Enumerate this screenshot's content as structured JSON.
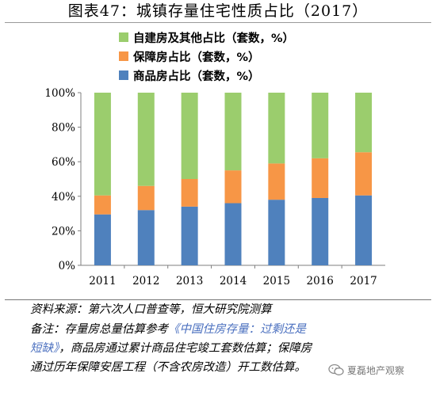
{
  "figure": {
    "title": "图表47：城镇存量住宅性质占比（2017）"
  },
  "chart_data": {
    "type": "bar",
    "stacked": true,
    "categories": [
      "2011",
      "2012",
      "2013",
      "2014",
      "2015",
      "2016",
      "2017"
    ],
    "series": [
      {
        "name": "商品房占比（套数，%）",
        "color": "#4f81bd",
        "values": [
          29.5,
          32,
          34,
          36,
          38,
          39,
          40.5
        ]
      },
      {
        "name": "保障房占比（套数，%）",
        "color": "#f79646",
        "values": [
          11,
          14,
          16,
          19,
          21,
          23,
          25
        ]
      },
      {
        "name": "自建房及其他占比（套数，%）",
        "color": "#9bcd6d",
        "values": [
          59.5,
          54,
          50,
          45,
          41,
          38,
          34.5
        ]
      }
    ],
    "legend_order": [
      "自建房及其他占比（套数，%）",
      "保障房占比（套数，%）",
      "商品房占比（套数，%）"
    ],
    "legend_position": "top-left",
    "yticks": [
      "0%",
      "20%",
      "40%",
      "60%",
      "80%",
      "100%"
    ],
    "ylim": [
      0,
      100
    ],
    "grid": false
  },
  "notes": {
    "source": "资料来源：第六次人口普查等，恒大研究院测算",
    "remark_prefix": "备注：存量房总量估算参考",
    "remark_highlight_1": "《中国住房存量：过剩还是",
    "remark_highlight_2": "短缺》",
    "remark_line2_rest": "，商品房通过累计商品住宅竣工套数估算；保障房",
    "remark_line3": "通过历年保障安居工程（不含农房改造）开工数估算。"
  },
  "watermark": {
    "text": "夏磊地产观察"
  }
}
